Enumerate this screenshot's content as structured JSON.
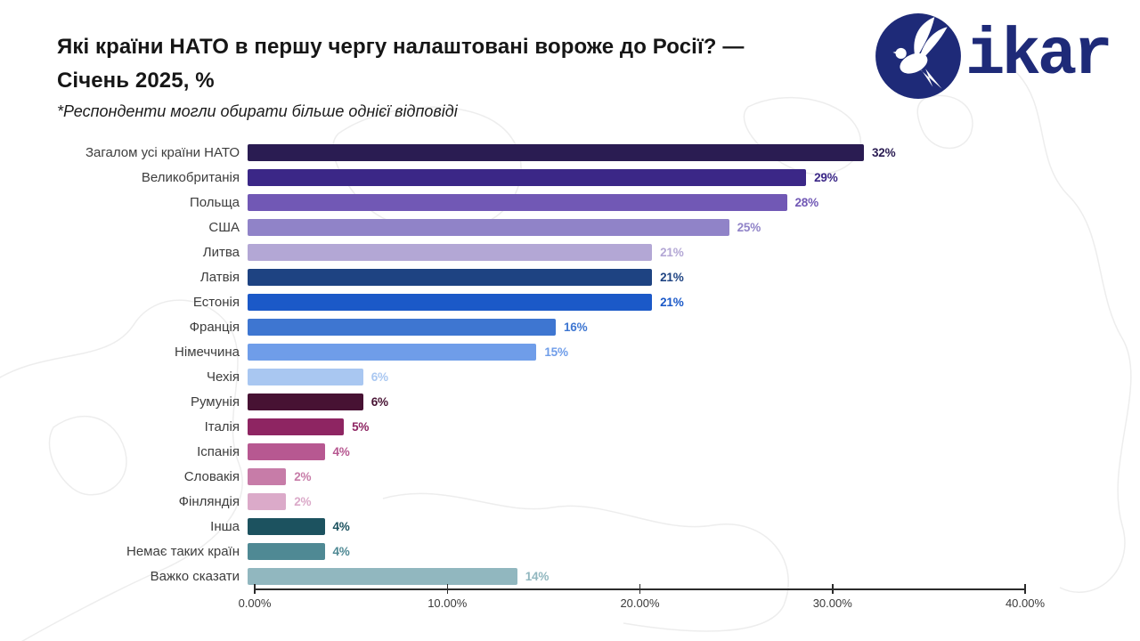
{
  "header": {
    "title_line1": "Які країни НАТО в першу чергу налаштовані вороже до Росії? —",
    "title_line2": "Січень 2025, %",
    "subtitle": "*Респонденти могли обирати більше однієї відповіді"
  },
  "logo": {
    "text": "ikar",
    "icon": "dove-in-circle-icon",
    "color": "#1e2a78"
  },
  "chart_data": {
    "type": "bar",
    "orientation": "horizontal",
    "title": "Які країни НАТО в першу чергу налаштовані вороже до Росії? — Січень 2025, %",
    "note": "*Респонденти могли обирати більше однієї відповіді",
    "categories": [
      "Загалом усі країни НАТО",
      "Великобританія",
      "Польща",
      "США",
      "Литва",
      "Латвія",
      "Естонія",
      "Франція",
      "Німеччина",
      "Чехія",
      "Румунія",
      "Італія",
      "Іспанія",
      "Словакія",
      "Фінляндія",
      "Інша",
      "Немає таких країн",
      "Важко сказати"
    ],
    "values": [
      32,
      29,
      28,
      25,
      21,
      21,
      21,
      16,
      15,
      6,
      6,
      5,
      4,
      2,
      2,
      4,
      4,
      14
    ],
    "value_labels": [
      "32%",
      "29%",
      "28%",
      "25%",
      "21%",
      "21%",
      "21%",
      "16%",
      "15%",
      "6%",
      "6%",
      "5%",
      "4%",
      "2%",
      "2%",
      "4%",
      "4%",
      "14%"
    ],
    "bar_colors": [
      "#2a1c52",
      "#3b2787",
      "#7158b5",
      "#9083c8",
      "#b3a7d5",
      "#1e4382",
      "#1b59c8",
      "#3e76d1",
      "#6f9de9",
      "#a9c7f1",
      "#471233",
      "#8e2562",
      "#b75891",
      "#c77ca8",
      "#dbaac9",
      "#1c525f",
      "#4f8994",
      "#91b7bf"
    ],
    "xlabel": "",
    "ylabel": "",
    "xlim": [
      0,
      40
    ],
    "x_ticks": [
      "0.00%",
      "10.00%",
      "20.00%",
      "30.00%",
      "40.00%"
    ],
    "grid": false,
    "legend": "none",
    "value_label_style": "right of bar, colored same as bar"
  }
}
